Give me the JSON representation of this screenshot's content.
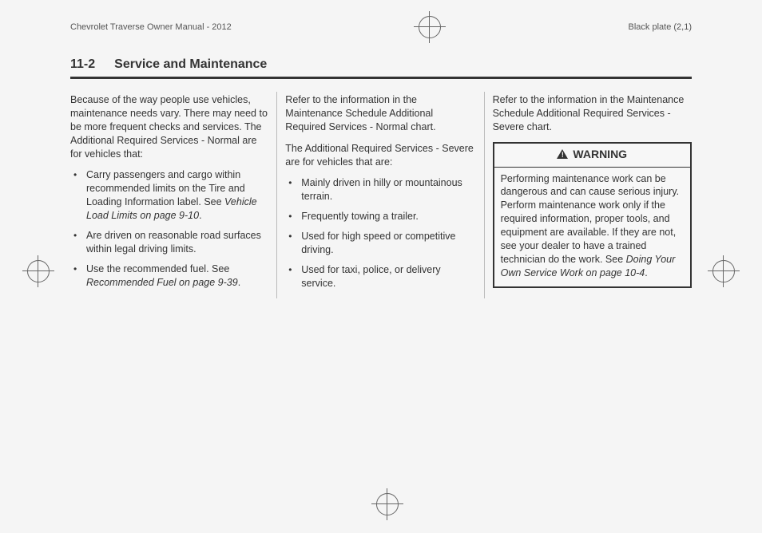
{
  "header": {
    "left": "Chevrolet Traverse Owner Manual - 2012",
    "right": "Black plate (2,1)"
  },
  "section": {
    "page_num": "11-2",
    "title": "Service and Maintenance"
  },
  "col1": {
    "intro": "Because of the way people use vehicles, maintenance needs vary. There may need to be more frequent checks and services. The Additional Required Services - Normal are for vehicles that:",
    "b1_a": "Carry passengers and cargo within recommended limits on the Tire and Loading Information label. See ",
    "b1_b": "Vehicle Load Limits on page 9‑10",
    "b1_c": ".",
    "b2": "Are driven on reasonable road surfaces within legal driving limits.",
    "b3_a": "Use the recommended fuel. See ",
    "b3_b": "Recommended Fuel on page 9‑39",
    "b3_c": "."
  },
  "col2": {
    "p1": "Refer to the information in the Maintenance Schedule Additional Required Services - Normal chart.",
    "p2": "The Additional Required Services - Severe are for vehicles that are:",
    "b1": "Mainly driven in hilly or mountainous terrain.",
    "b2": "Frequently towing a trailer.",
    "b3": "Used for high speed or competitive driving.",
    "b4": "Used for taxi, police, or delivery service."
  },
  "col3": {
    "p1": "Refer to the information in the Maintenance Schedule Additional Required Services - Severe chart.",
    "warn_label": "WARNING",
    "warn_a": "Performing maintenance work can be dangerous and can cause serious injury. Perform maintenance work only if the required information, proper tools, and equipment are available. If they are not, see your dealer to have a trained technician do the work. See ",
    "warn_b": "Doing Your Own Service Work on page 10‑4",
    "warn_c": "."
  }
}
